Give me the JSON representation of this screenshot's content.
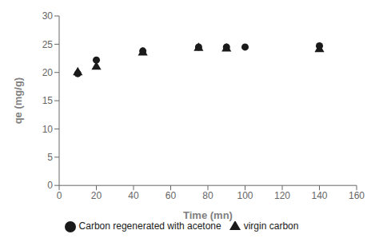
{
  "chart_data": {
    "type": "scatter",
    "xlabel": "Time (mn)",
    "ylabel": "qe (mg/g)",
    "series": [
      {
        "name": "virgin carbon",
        "color": "#1a1a1a",
        "marker": "triangle",
        "x": [
          10,
          20,
          45,
          75,
          90,
          140
        ],
        "values": [
          20.0,
          21.0,
          23.5,
          24.3,
          24.2,
          24.1
        ]
      },
      {
        "name": "Carbon regenerated with acetone",
        "color": "#1a1a1a",
        "marker": "circle",
        "x": [
          10,
          20,
          45,
          75,
          90,
          100,
          140
        ],
        "values": [
          19.8,
          22.2,
          23.8,
          24.5,
          24.5,
          24.5,
          24.7
        ]
      }
    ],
    "xlim": [
      0,
      160
    ],
    "ylim": [
      0,
      30
    ],
    "xticks": [
      0,
      20,
      40,
      60,
      80,
      100,
      120,
      140,
      160
    ],
    "yticks": [
      0,
      5,
      10,
      15,
      20,
      25,
      30
    ],
    "grid": false,
    "legend": "lower center"
  }
}
